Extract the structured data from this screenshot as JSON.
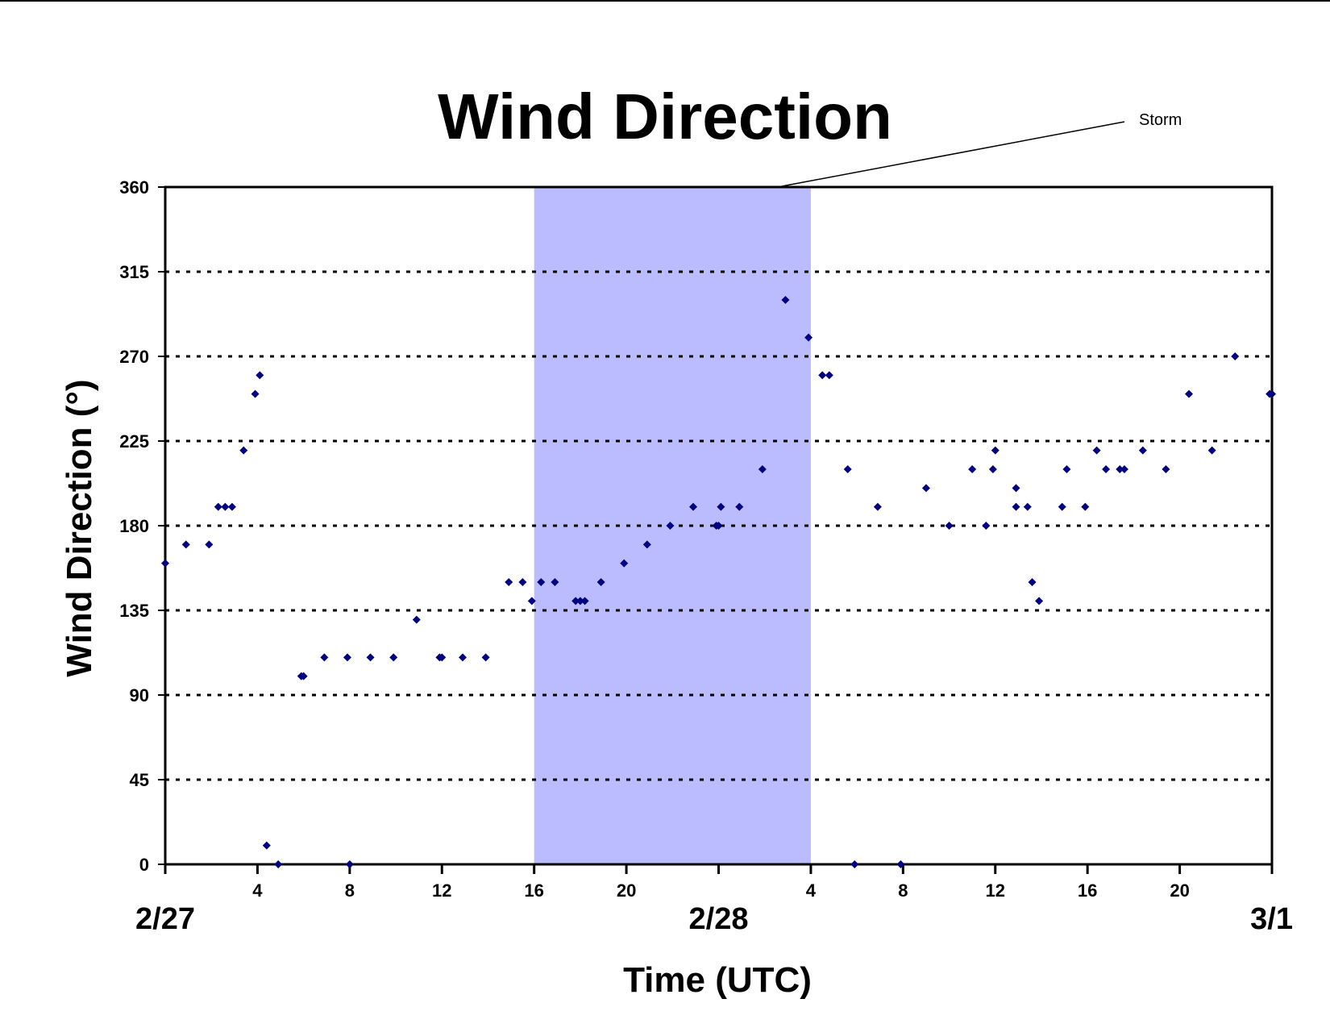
{
  "chart_data": {
    "type": "scatter",
    "title": "Wind Direction",
    "xlabel": "Time (UTC)",
    "ylabel": "Wind Direction (°)",
    "x_unit": "hours UTC, starting 2/27 00:00",
    "xlim": [
      0,
      48
    ],
    "ylim": [
      0,
      360
    ],
    "yticks": [
      "0",
      "45",
      "90",
      "135",
      "180",
      "225",
      "270",
      "315",
      "360"
    ],
    "y_grid": "dotted",
    "hour_ticks": [
      {
        "hour": 4,
        "label": "4"
      },
      {
        "hour": 8,
        "label": "8"
      },
      {
        "hour": 12,
        "label": "12"
      },
      {
        "hour": 16,
        "label": "16"
      },
      {
        "hour": 20,
        "label": "20"
      },
      {
        "hour": 28,
        "label": "4"
      },
      {
        "hour": 32,
        "label": "8"
      },
      {
        "hour": 36,
        "label": "12"
      },
      {
        "hour": 40,
        "label": "16"
      },
      {
        "hour": 44,
        "label": "20"
      }
    ],
    "date_labels": [
      {
        "hour": 0,
        "label": "2/27"
      },
      {
        "hour": 24,
        "label": "2/28"
      },
      {
        "hour": 48,
        "label": "3/1"
      }
    ],
    "shaded_region": {
      "label": "Storm",
      "from_hour": 16,
      "to_hour": 28,
      "color": "#bbbbff"
    },
    "marker_color": "#000080",
    "series": [
      {
        "points": [
          [
            0.0,
            160
          ],
          [
            0.9,
            170
          ],
          [
            1.9,
            170
          ],
          [
            2.3,
            190
          ],
          [
            2.6,
            190
          ],
          [
            2.9,
            190
          ],
          [
            3.4,
            220
          ],
          [
            3.9,
            250
          ],
          [
            4.1,
            260
          ],
          [
            4.4,
            10
          ],
          [
            4.9,
            0
          ],
          [
            5.9,
            100
          ],
          [
            6.0,
            100
          ],
          [
            6.9,
            110
          ],
          [
            7.9,
            110
          ],
          [
            8.0,
            0
          ],
          [
            8.9,
            110
          ],
          [
            9.9,
            110
          ],
          [
            10.9,
            130
          ],
          [
            11.9,
            110
          ],
          [
            12.0,
            110
          ],
          [
            12.9,
            110
          ],
          [
            13.9,
            110
          ],
          [
            14.9,
            150
          ],
          [
            15.5,
            150
          ],
          [
            15.9,
            140
          ],
          [
            16.3,
            150
          ],
          [
            16.9,
            150
          ],
          [
            17.8,
            140
          ],
          [
            18.0,
            140
          ],
          [
            18.2,
            140
          ],
          [
            18.9,
            150
          ],
          [
            19.9,
            160
          ],
          [
            20.9,
            170
          ],
          [
            21.9,
            180
          ],
          [
            22.9,
            190
          ],
          [
            23.9,
            180
          ],
          [
            24.0,
            180
          ],
          [
            24.1,
            190
          ],
          [
            24.9,
            190
          ],
          [
            25.9,
            210
          ],
          [
            26.9,
            300
          ],
          [
            27.9,
            280
          ],
          [
            28.5,
            260
          ],
          [
            28.8,
            260
          ],
          [
            29.6,
            210
          ],
          [
            29.9,
            0
          ],
          [
            30.9,
            190
          ],
          [
            31.9,
            0
          ],
          [
            33.0,
            200
          ],
          [
            34.0,
            180
          ],
          [
            35.0,
            210
          ],
          [
            35.6,
            180
          ],
          [
            35.9,
            210
          ],
          [
            36.0,
            220
          ],
          [
            36.9,
            200
          ],
          [
            36.9,
            190
          ],
          [
            37.4,
            190
          ],
          [
            37.6,
            150
          ],
          [
            37.9,
            140
          ],
          [
            38.9,
            190
          ],
          [
            39.1,
            210
          ],
          [
            39.9,
            190
          ],
          [
            40.4,
            220
          ],
          [
            40.8,
            210
          ],
          [
            41.4,
            210
          ],
          [
            41.6,
            210
          ],
          [
            42.4,
            220
          ],
          [
            43.4,
            210
          ],
          [
            44.4,
            250
          ],
          [
            45.4,
            220
          ],
          [
            46.4,
            270
          ],
          [
            47.9,
            250
          ],
          [
            48.0,
            250
          ]
        ]
      }
    ]
  }
}
